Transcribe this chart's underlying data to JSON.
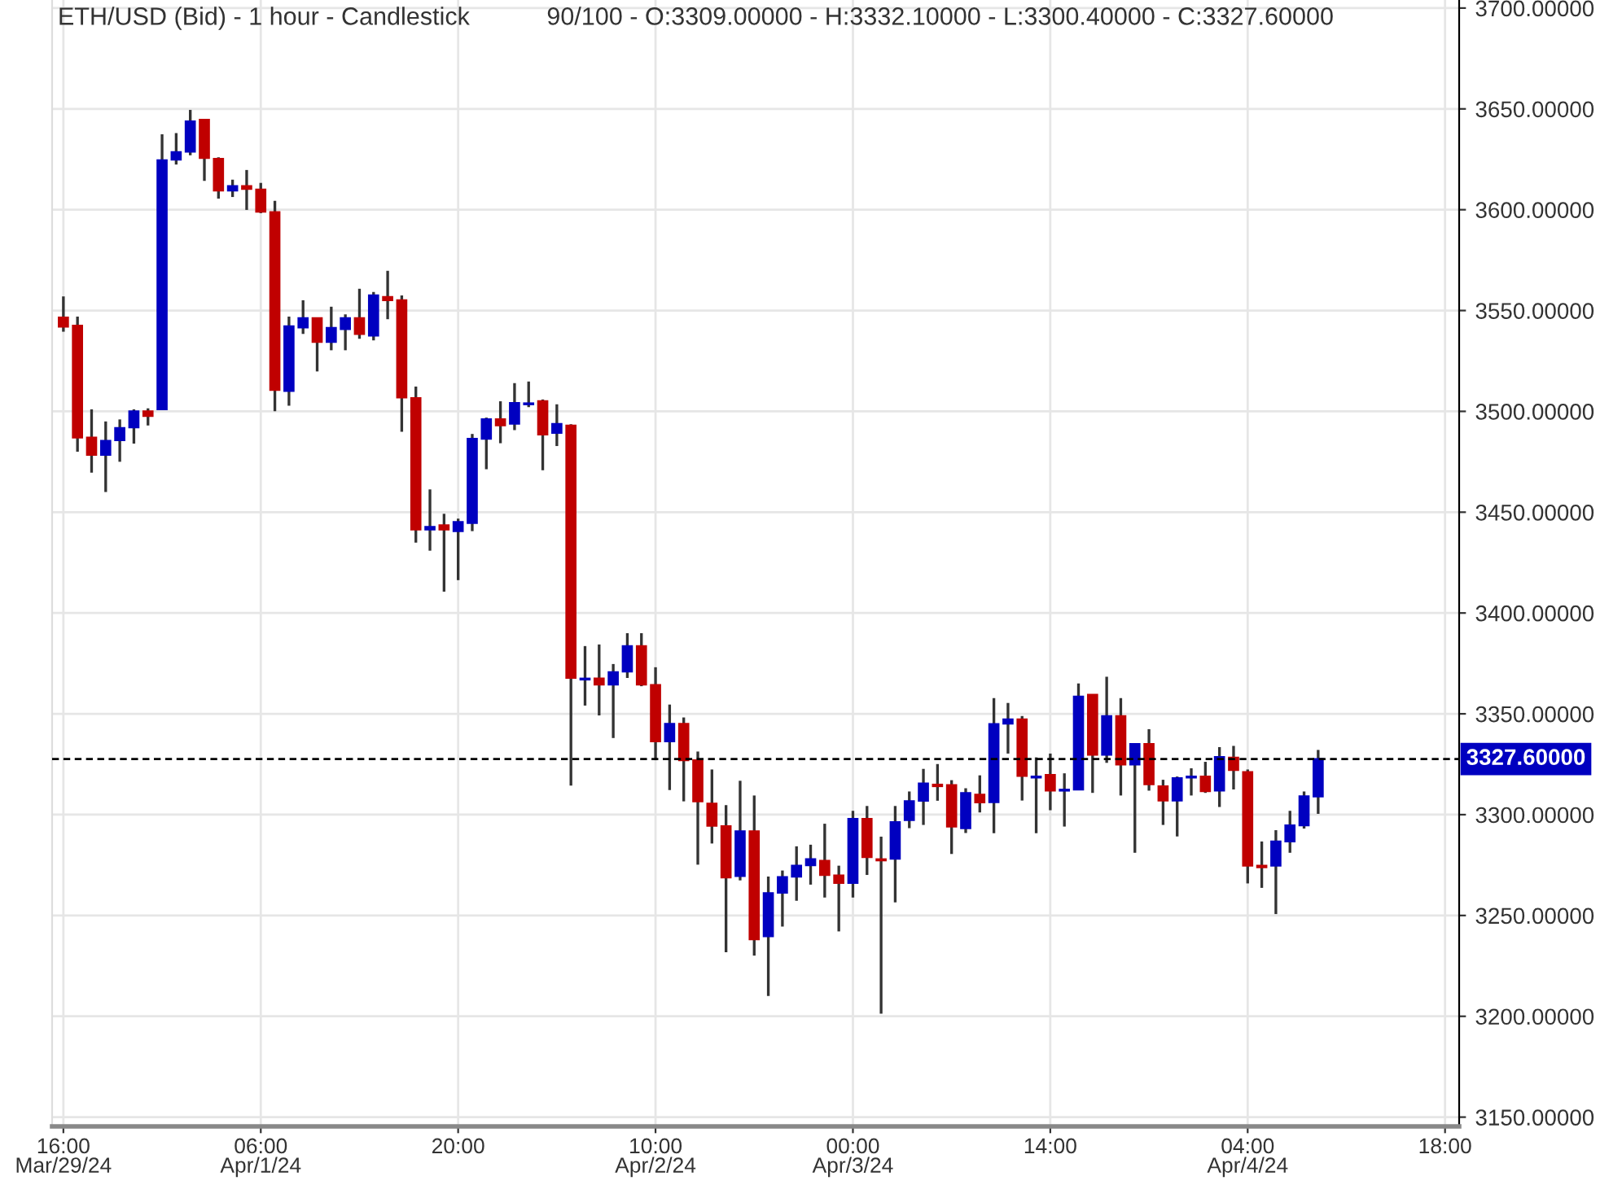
{
  "chart_data": {
    "type": "candlestick",
    "title": "ETH/USD (Bid) - 1 hour - Candlestick",
    "subtitle": "90/100 - O:3309.00000 - H:3332.10000 - L:3300.40000 - C:3327.60000",
    "categories": [
      "16:00\nMar/29/24",
      null,
      null,
      null,
      null,
      null,
      null,
      null,
      null,
      null,
      null,
      null,
      null,
      null,
      "06:00\nApr/1/24",
      null,
      null,
      null,
      null,
      null,
      null,
      null,
      null,
      null,
      null,
      null,
      null,
      null,
      "20:00",
      null,
      null,
      null,
      null,
      null,
      null,
      null,
      null,
      null,
      null,
      null,
      null,
      null,
      "10:00\nApr/2/24",
      null,
      null,
      null,
      null,
      null,
      null,
      null,
      null,
      null,
      null,
      null,
      null,
      null,
      "00:00\nApr/3/24",
      null,
      null,
      null,
      null,
      null,
      null,
      null,
      null,
      null,
      null,
      null,
      null,
      null,
      "14:00",
      null,
      null,
      null,
      null,
      null,
      null,
      null,
      null,
      null,
      null,
      null,
      null,
      null,
      "04:00\nApr/4/24",
      null,
      null,
      null,
      null,
      null,
      null,
      null,
      null,
      null,
      null,
      null,
      null,
      null,
      "18:00"
    ],
    "ohlc": [
      [
        3546.5,
        3557,
        3539.5,
        3542
      ],
      [
        3542.5,
        3547,
        3480,
        3487
      ],
      [
        3487,
        3501,
        3469.6,
        3478.4
      ],
      [
        3478.4,
        3495,
        3460,
        3485.4
      ],
      [
        3485.7,
        3496,
        3475,
        3491.8
      ],
      [
        3492,
        3501,
        3484,
        3500
      ],
      [
        3500,
        3501.5,
        3493,
        3497.7
      ],
      [
        3501,
        3637.4,
        3501,
        3624.5
      ],
      [
        3624.8,
        3638,
        3622.4,
        3628.6
      ],
      [
        3628.8,
        3649.5,
        3627,
        3643.8
      ],
      [
        3644.6,
        3645,
        3614.3,
        3625.6
      ],
      [
        3625.3,
        3626,
        3605.5,
        3609.5
      ],
      [
        3609.5,
        3614.9,
        3606.3,
        3611.7
      ],
      [
        3611.7,
        3619.7,
        3599.9,
        3610.3
      ],
      [
        3610,
        3613.3,
        3598.3,
        3599
      ],
      [
        3598.8,
        3604.4,
        3500.1,
        3510.6
      ],
      [
        3510.1,
        3547,
        3502.8,
        3542.2
      ],
      [
        3541.6,
        3555.1,
        3538.4,
        3546.2
      ],
      [
        3546.2,
        3546.2,
        3519.8,
        3534.4
      ],
      [
        3534.4,
        3551.9,
        3530.3,
        3541.4
      ],
      [
        3540.8,
        3548.1,
        3530.3,
        3546.2
      ],
      [
        3546.2,
        3560.8,
        3536,
        3538.4
      ],
      [
        3537.6,
        3559.2,
        3535.2,
        3557.5
      ],
      [
        3556.7,
        3569.7,
        3545.7,
        3555.1
      ],
      [
        3555.1,
        3557.5,
        3489.9,
        3506.9
      ],
      [
        3506.6,
        3512.3,
        3434.9,
        3441.4
      ],
      [
        3441.4,
        3461.3,
        3430.9,
        3442.7
      ],
      [
        3443.5,
        3449.2,
        3410.6,
        3441.4
      ],
      [
        3440.6,
        3446.8,
        3416.3,
        3445.1
      ],
      [
        3444.6,
        3488.8,
        3440.6,
        3486.4
      ],
      [
        3486.4,
        3496.9,
        3471.3,
        3496.1
      ],
      [
        3496.1,
        3505,
        3484.2,
        3493.1
      ],
      [
        3493.9,
        3514,
        3490.7,
        3504.2
      ],
      [
        3503.5,
        3514.8,
        3502.1,
        3504
      ],
      [
        3505.1,
        3505.9,
        3470.8,
        3488.5
      ],
      [
        3489.3,
        3503.5,
        3482.8,
        3493.8
      ],
      [
        3493,
        3493.6,
        3314.4,
        3367.8
      ],
      [
        3367,
        3383.6,
        3354.1,
        3367.5
      ],
      [
        3367.5,
        3384.4,
        3349.2,
        3364.5
      ],
      [
        3364.5,
        3374.7,
        3338,
        3370.7
      ],
      [
        3371,
        3390,
        3367.8,
        3383.6
      ],
      [
        3383.6,
        3390,
        3363.7,
        3364.5
      ],
      [
        3364.3,
        3373.1,
        3327,
        3336.4
      ],
      [
        3336.4,
        3354.6,
        3312.2,
        3345
      ],
      [
        3345,
        3348.2,
        3306.6,
        3327
      ],
      [
        3327,
        3331.3,
        3275.2,
        3306.6
      ],
      [
        3305.5,
        3322.4,
        3285.7,
        3294.5
      ],
      [
        3294.3,
        3304.7,
        3231.8,
        3268.8
      ],
      [
        3269.6,
        3316.8,
        3267.4,
        3291.8
      ],
      [
        3291.8,
        3309.5,
        3230.1,
        3238.2
      ],
      [
        3239.7,
        3269.3,
        3210.1,
        3261.1
      ],
      [
        3261.3,
        3272.3,
        3244.5,
        3269.1
      ],
      [
        3269.3,
        3284.3,
        3257.3,
        3274.7
      ],
      [
        3274.9,
        3285.1,
        3265.3,
        3277.9
      ],
      [
        3277.1,
        3295.5,
        3258.9,
        3270.1
      ],
      [
        3269.9,
        3274.7,
        3242.1,
        3266.1
      ],
      [
        3266.1,
        3301.9,
        3258.9,
        3297.9
      ],
      [
        3297.9,
        3304.3,
        3270.1,
        3278.9
      ],
      [
        3277.9,
        3289.1,
        3201.3,
        3277.3
      ],
      [
        3278.1,
        3304.3,
        3256.5,
        3296.3
      ],
      [
        3297.3,
        3311.5,
        3293.3,
        3306.7
      ],
      [
        3306.9,
        3322.7,
        3294.9,
        3315.5
      ],
      [
        3314.9,
        3325.1,
        3306.9,
        3314.1
      ],
      [
        3314.7,
        3317.1,
        3280.5,
        3294.1
      ],
      [
        3293.3,
        3313.1,
        3290.9,
        3310.7
      ],
      [
        3309.9,
        3319.5,
        3301.1,
        3306.1
      ],
      [
        3306.2,
        3357.8,
        3290.8,
        3344.9
      ],
      [
        3345.1,
        3355.4,
        3330.3,
        3347.3
      ],
      [
        3347.3,
        3348.9,
        3307,
        3319.2
      ],
      [
        3318.4,
        3328.4,
        3290.8,
        3318.9
      ],
      [
        3319.7,
        3330.3,
        3302.2,
        3311.9
      ],
      [
        3311.9,
        3320.5,
        3294.1,
        3312.4
      ],
      [
        3312.4,
        3365.1,
        3312.4,
        3358.6
      ],
      [
        3359.5,
        3359.5,
        3310.8,
        3329.7
      ],
      [
        3329.7,
        3368.4,
        3325.7,
        3348.9
      ],
      [
        3348.9,
        3357.8,
        3309.5,
        3324.9
      ],
      [
        3324.9,
        3335.1,
        3281.1,
        3335.1
      ],
      [
        3335.1,
        3342.4,
        3311.9,
        3315.1
      ],
      [
        3314.1,
        3317.3,
        3294.9,
        3307
      ],
      [
        3307,
        3318.9,
        3289.2,
        3318.1
      ],
      [
        3318.4,
        3323,
        3309.5,
        3318.9
      ],
      [
        3318.9,
        3326.2,
        3310.8,
        3311.6
      ],
      [
        3311.9,
        3333.5,
        3303.8,
        3328.6
      ],
      [
        3328.3,
        3334.1,
        3312.5,
        3322.1
      ],
      [
        3321.1,
        3322.4,
        3265.9,
        3274.7
      ],
      [
        3274.7,
        3286.7,
        3263.7,
        3273.9
      ],
      [
        3274.7,
        3292.3,
        3250.7,
        3286.7
      ],
      [
        3286.7,
        3301.9,
        3281.1,
        3294.7
      ],
      [
        3294.7,
        3311.5,
        3293.1,
        3309.1
      ],
      [
        3309,
        3332.1,
        3300.4,
        3327.6
      ],
      null,
      null,
      null,
      null,
      null,
      null,
      null,
      null,
      null
    ],
    "colors": [
      "#c00000",
      "#c00000",
      "#c00000",
      "#0000c0",
      "#0000c0",
      "#0000c0",
      "#c00000",
      "#0000c0",
      "#0000c0",
      "#0000c0",
      "#c00000",
      "#c00000",
      "#0000c0",
      "#c00000",
      "#c00000",
      "#c00000",
      "#0000c0",
      "#0000c0",
      "#c00000",
      "#0000c0",
      "#0000c0",
      "#c00000",
      "#0000c0",
      "#c00000",
      "#c00000",
      "#c00000",
      "#0000c0",
      "#c00000",
      "#0000c0",
      "#0000c0",
      "#0000c0",
      "#c00000",
      "#0000c0",
      "#0000c0",
      "#c00000",
      "#0000c0",
      "#c00000",
      "#0000c0",
      "#c00000",
      "#0000c0",
      "#0000c0",
      "#c00000",
      "#c00000",
      "#0000c0",
      "#c00000",
      "#c00000",
      "#c00000",
      "#c00000",
      "#0000c0",
      "#c00000",
      "#0000c0",
      "#0000c0",
      "#0000c0",
      "#0000c0",
      "#c00000",
      "#c00000",
      "#0000c0",
      "#c00000",
      "#c00000",
      "#0000c0",
      "#0000c0",
      "#0000c0",
      "#c00000",
      "#c00000",
      "#0000c0",
      "#c00000",
      "#0000c0",
      "#0000c0",
      "#c00000",
      "#0000c0",
      "#c00000",
      "#0000c0",
      "#0000c0",
      "#c00000",
      "#0000c0",
      "#c00000",
      "#0000c0",
      "#c00000",
      "#c00000",
      "#0000c0",
      "#0000c0",
      "#c00000",
      "#0000c0",
      "#c00000",
      "#c00000",
      "#c00000",
      "#0000c0",
      "#0000c0",
      "#0000c0",
      "#0000c0",
      null,
      null,
      null,
      null,
      null,
      null,
      null,
      null,
      null
    ],
    "ylim": [
      3145.4,
      3704
    ],
    "yticks": [
      {
        "value": 3150,
        "label": "3150.00000"
      },
      {
        "value": 3200,
        "label": "3200.00000"
      },
      {
        "value": 3250,
        "label": "3250.00000"
      },
      {
        "value": 3300,
        "label": "3300.00000"
      },
      {
        "value": 3350,
        "label": "3350.00000"
      },
      {
        "value": 3400,
        "label": "3400.00000"
      },
      {
        "value": 3450,
        "label": "3450.00000"
      },
      {
        "value": 3500,
        "label": "3500.00000"
      },
      {
        "value": 3550,
        "label": "3550.00000"
      },
      {
        "value": 3600,
        "label": "3600.00000"
      },
      {
        "value": 3650,
        "label": "3650.00000"
      },
      {
        "value": 3700,
        "label": "3700.00000"
      }
    ],
    "ref_lines": [
      {
        "axis": "y",
        "value": 3327.6,
        "label": "3327.60000",
        "color": "#000000",
        "line_style": "dashed"
      }
    ],
    "grid": true
  }
}
